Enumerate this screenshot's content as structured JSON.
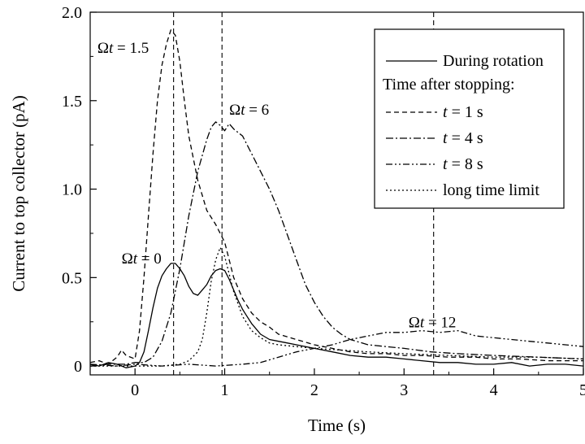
{
  "chart_data": {
    "type": "line",
    "xlabel": "Time (s)",
    "ylabel": "Current to top collector (pA)",
    "xlim": [
      -0.5,
      5
    ],
    "ylim": [
      -0.05,
      2.0
    ],
    "xticks": [
      {
        "v": 0,
        "label": "0"
      },
      {
        "v": 1,
        "label": "1"
      },
      {
        "v": 2,
        "label": "2"
      },
      {
        "v": 3,
        "label": "3"
      },
      {
        "v": 4,
        "label": "4"
      },
      {
        "v": 5,
        "label": "5"
      }
    ],
    "yticks": [
      {
        "v": 0,
        "label": "0"
      },
      {
        "v": 0.5,
        "label": "0.5"
      },
      {
        "v": 1.0,
        "label": "1.0"
      },
      {
        "v": 1.5,
        "label": "1.5"
      },
      {
        "v": 2.0,
        "label": "2.0"
      }
    ],
    "grid": false,
    "legend": {
      "placement": "top-right",
      "header": "Time after stopping:",
      "entries": [
        {
          "series": 0,
          "label_parts": [
            {
              "t": "During rotation",
              "i": false
            }
          ]
        },
        {
          "series": 1,
          "label_parts": [
            {
              "t": "t",
              "i": true
            },
            {
              "t": " = 1 s",
              "i": false
            }
          ]
        },
        {
          "series": 2,
          "label_parts": [
            {
              "t": "t",
              "i": true
            },
            {
              "t": " = 4 s",
              "i": false
            }
          ]
        },
        {
          "series": 3,
          "label_parts": [
            {
              "t": "t",
              "i": true
            },
            {
              "t": " = 8 s",
              "i": false
            }
          ]
        },
        {
          "series": 4,
          "label_parts": [
            {
              "t": "long time limit",
              "i": false
            }
          ]
        }
      ]
    },
    "vlines": [
      0.43,
      0.97,
      3.33
    ],
    "annotations": [
      {
        "x": -0.42,
        "y": 1.77,
        "parts": [
          {
            "t": "Ω",
            "i": false
          },
          {
            "t": "t",
            "i": true
          },
          {
            "t": " = 1.5",
            "i": false
          }
        ]
      },
      {
        "x": 1.05,
        "y": 1.42,
        "parts": [
          {
            "t": "Ω",
            "i": false
          },
          {
            "t": "t",
            "i": true
          },
          {
            "t": " = 6",
            "i": false
          }
        ]
      },
      {
        "x": -0.15,
        "y": 0.58,
        "parts": [
          {
            "t": "Ω",
            "i": false
          },
          {
            "t": "t",
            "i": true
          },
          {
            "t": " = 0",
            "i": false
          }
        ]
      },
      {
        "x": 3.05,
        "y": 0.22,
        "parts": [
          {
            "t": "Ω",
            "i": false
          },
          {
            "t": "t",
            "i": true
          },
          {
            "t": " = 12",
            "i": false
          }
        ]
      }
    ],
    "series": [
      {
        "dash": "solid",
        "x": [
          -0.5,
          -0.4,
          -0.3,
          -0.2,
          -0.1,
          0,
          0.05,
          0.1,
          0.15,
          0.2,
          0.25,
          0.3,
          0.35,
          0.4,
          0.45,
          0.5,
          0.55,
          0.6,
          0.65,
          0.7,
          0.75,
          0.8,
          0.85,
          0.9,
          0.95,
          1.0,
          1.05,
          1.1,
          1.15,
          1.2,
          1.25,
          1.3,
          1.35,
          1.4,
          1.5,
          1.6,
          1.7,
          1.8,
          2.0,
          2.2,
          2.4,
          2.6,
          2.8,
          3.0,
          3.2,
          3.4,
          3.6,
          3.8,
          4.0,
          4.2,
          4.4,
          4.6,
          4.8,
          5.0
        ],
        "y": [
          0.01,
          0.0,
          0.02,
          0.01,
          -0.01,
          0.0,
          0.02,
          0.08,
          0.2,
          0.33,
          0.44,
          0.51,
          0.55,
          0.58,
          0.58,
          0.55,
          0.51,
          0.45,
          0.41,
          0.4,
          0.43,
          0.46,
          0.51,
          0.54,
          0.55,
          0.54,
          0.49,
          0.43,
          0.37,
          0.32,
          0.28,
          0.24,
          0.21,
          0.18,
          0.15,
          0.14,
          0.13,
          0.12,
          0.1,
          0.08,
          0.06,
          0.05,
          0.05,
          0.04,
          0.03,
          0.02,
          0.02,
          0.01,
          0.01,
          0.02,
          0.0,
          0.01,
          0.01,
          0.0
        ]
      },
      {
        "dash": "6,4",
        "x": [
          -0.5,
          -0.4,
          -0.3,
          -0.2,
          -0.15,
          -0.1,
          0,
          0.05,
          0.1,
          0.15,
          0.2,
          0.25,
          0.3,
          0.35,
          0.4,
          0.45,
          0.5,
          0.55,
          0.6,
          0.7,
          0.8,
          0.9,
          0.95,
          1.0,
          1.05,
          1.1,
          1.2,
          1.3,
          1.4,
          1.5,
          1.6,
          1.8,
          2.0,
          2.2,
          2.4,
          2.6,
          2.8,
          3.0,
          3.2,
          3.5,
          3.8,
          4.0,
          4.3,
          4.6,
          5.0
        ],
        "y": [
          0.02,
          0.03,
          0.01,
          0.05,
          0.09,
          0.06,
          0.04,
          0.2,
          0.5,
          0.85,
          1.2,
          1.5,
          1.7,
          1.82,
          1.9,
          1.87,
          1.72,
          1.5,
          1.3,
          1.05,
          0.88,
          0.8,
          0.75,
          0.7,
          0.6,
          0.5,
          0.38,
          0.3,
          0.25,
          0.22,
          0.18,
          0.15,
          0.12,
          0.1,
          0.08,
          0.07,
          0.07,
          0.06,
          0.06,
          0.05,
          0.05,
          0.04,
          0.04,
          0.03,
          0.03
        ]
      },
      {
        "dash": "9,3,2,3",
        "x": [
          -0.5,
          -0.3,
          -0.1,
          0,
          0.1,
          0.2,
          0.3,
          0.4,
          0.5,
          0.6,
          0.7,
          0.8,
          0.85,
          0.9,
          0.95,
          1.0,
          1.05,
          1.1,
          1.2,
          1.3,
          1.4,
          1.5,
          1.6,
          1.7,
          1.8,
          1.9,
          2.0,
          2.1,
          2.2,
          2.3,
          2.4,
          2.6,
          2.8,
          3.0,
          3.3,
          3.6,
          4.0,
          4.5,
          5.0
        ],
        "y": [
          0.0,
          0.01,
          0.01,
          0.02,
          0.02,
          0.05,
          0.14,
          0.3,
          0.55,
          0.85,
          1.1,
          1.28,
          1.35,
          1.38,
          1.36,
          1.33,
          1.37,
          1.34,
          1.3,
          1.2,
          1.1,
          1.0,
          0.88,
          0.74,
          0.6,
          0.46,
          0.36,
          0.28,
          0.22,
          0.18,
          0.15,
          0.12,
          0.11,
          0.1,
          0.08,
          0.07,
          0.06,
          0.05,
          0.04
        ]
      },
      {
        "dash": "8,3,2,3,2,3",
        "x": [
          -0.5,
          -0.2,
          0,
          0.3,
          0.6,
          0.9,
          1.2,
          1.4,
          1.6,
          1.8,
          2.0,
          2.2,
          2.4,
          2.6,
          2.8,
          3.0,
          3.2,
          3.4,
          3.6,
          3.8,
          4.0,
          4.2,
          4.4,
          4.6,
          4.8,
          5.0
        ],
        "y": [
          0.01,
          0.0,
          0.01,
          0.0,
          0.01,
          0.0,
          0.01,
          0.02,
          0.05,
          0.08,
          0.1,
          0.12,
          0.15,
          0.17,
          0.19,
          0.19,
          0.2,
          0.19,
          0.2,
          0.17,
          0.16,
          0.15,
          0.14,
          0.13,
          0.12,
          0.11
        ]
      },
      {
        "dash": "2,3",
        "x": [
          -0.5,
          0,
          0.3,
          0.5,
          0.6,
          0.7,
          0.75,
          0.8,
          0.85,
          0.9,
          0.95,
          1.0,
          1.05,
          1.1,
          1.2,
          1.3,
          1.4,
          1.5,
          1.6,
          1.8,
          2.0,
          2.3,
          2.6,
          3.0,
          3.5,
          4.0,
          4.5,
          5.0
        ],
        "y": [
          0.0,
          0.0,
          0.0,
          0.01,
          0.03,
          0.08,
          0.15,
          0.3,
          0.48,
          0.6,
          0.67,
          0.62,
          0.52,
          0.42,
          0.28,
          0.2,
          0.16,
          0.13,
          0.12,
          0.11,
          0.1,
          0.09,
          0.08,
          0.07,
          0.06,
          0.05,
          0.05,
          0.04
        ]
      }
    ]
  }
}
